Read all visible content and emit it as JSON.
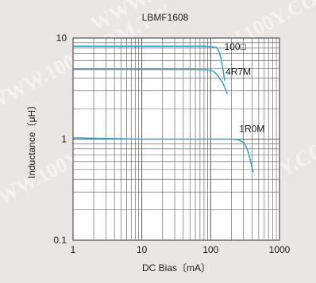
{
  "chart_data": {
    "type": "line",
    "title": "LBMF1608",
    "xlabel": "DC Bias〔mA〕",
    "ylabel": "Inductance〔μH〕",
    "xscale": "log",
    "yscale": "log",
    "xlim": [
      1,
      1000
    ],
    "ylim": [
      0.1,
      10
    ],
    "grid": true,
    "x_ticks": [
      "1",
      "10",
      "100",
      "1000"
    ],
    "y_ticks": [
      "0.1",
      "1",
      "10"
    ],
    "line_color": "#3aa0c8",
    "series": [
      {
        "name": "100□",
        "points": [
          [
            1,
            8.3
          ],
          [
            10,
            8.3
          ],
          [
            50,
            8.3
          ],
          [
            80,
            8.3
          ],
          [
            100,
            8.25
          ],
          [
            120,
            8.1
          ],
          [
            130,
            7.6
          ],
          [
            140,
            6.5
          ],
          [
            150,
            5.0
          ],
          [
            160,
            3.8
          ]
        ]
      },
      {
        "name": "4R7M",
        "points": [
          [
            1,
            4.9
          ],
          [
            10,
            4.9
          ],
          [
            50,
            4.9
          ],
          [
            90,
            4.85
          ],
          [
            110,
            4.7
          ],
          [
            125,
            4.3
          ],
          [
            135,
            4.0
          ],
          [
            150,
            3.6
          ],
          [
            165,
            3.1
          ],
          [
            175,
            2.8
          ]
        ]
      },
      {
        "name": "1R0M",
        "points": [
          [
            1,
            1.03
          ],
          [
            10,
            1.0
          ],
          [
            100,
            1.0
          ],
          [
            200,
            1.0
          ],
          [
            250,
            0.99
          ],
          [
            300,
            0.93
          ],
          [
            340,
            0.8
          ],
          [
            370,
            0.65
          ],
          [
            400,
            0.52
          ],
          [
            420,
            0.47
          ]
        ]
      }
    ],
    "watermarks": [
      "WWW.100Y.COM.TW",
      "WWW.100Y.COM.TW",
      "WWW.100Y.COM.TW",
      "WWW.100Y.COM.TW",
      "WWW.100Y.COM.TW",
      "WWW.100Y.COM.TW"
    ]
  }
}
